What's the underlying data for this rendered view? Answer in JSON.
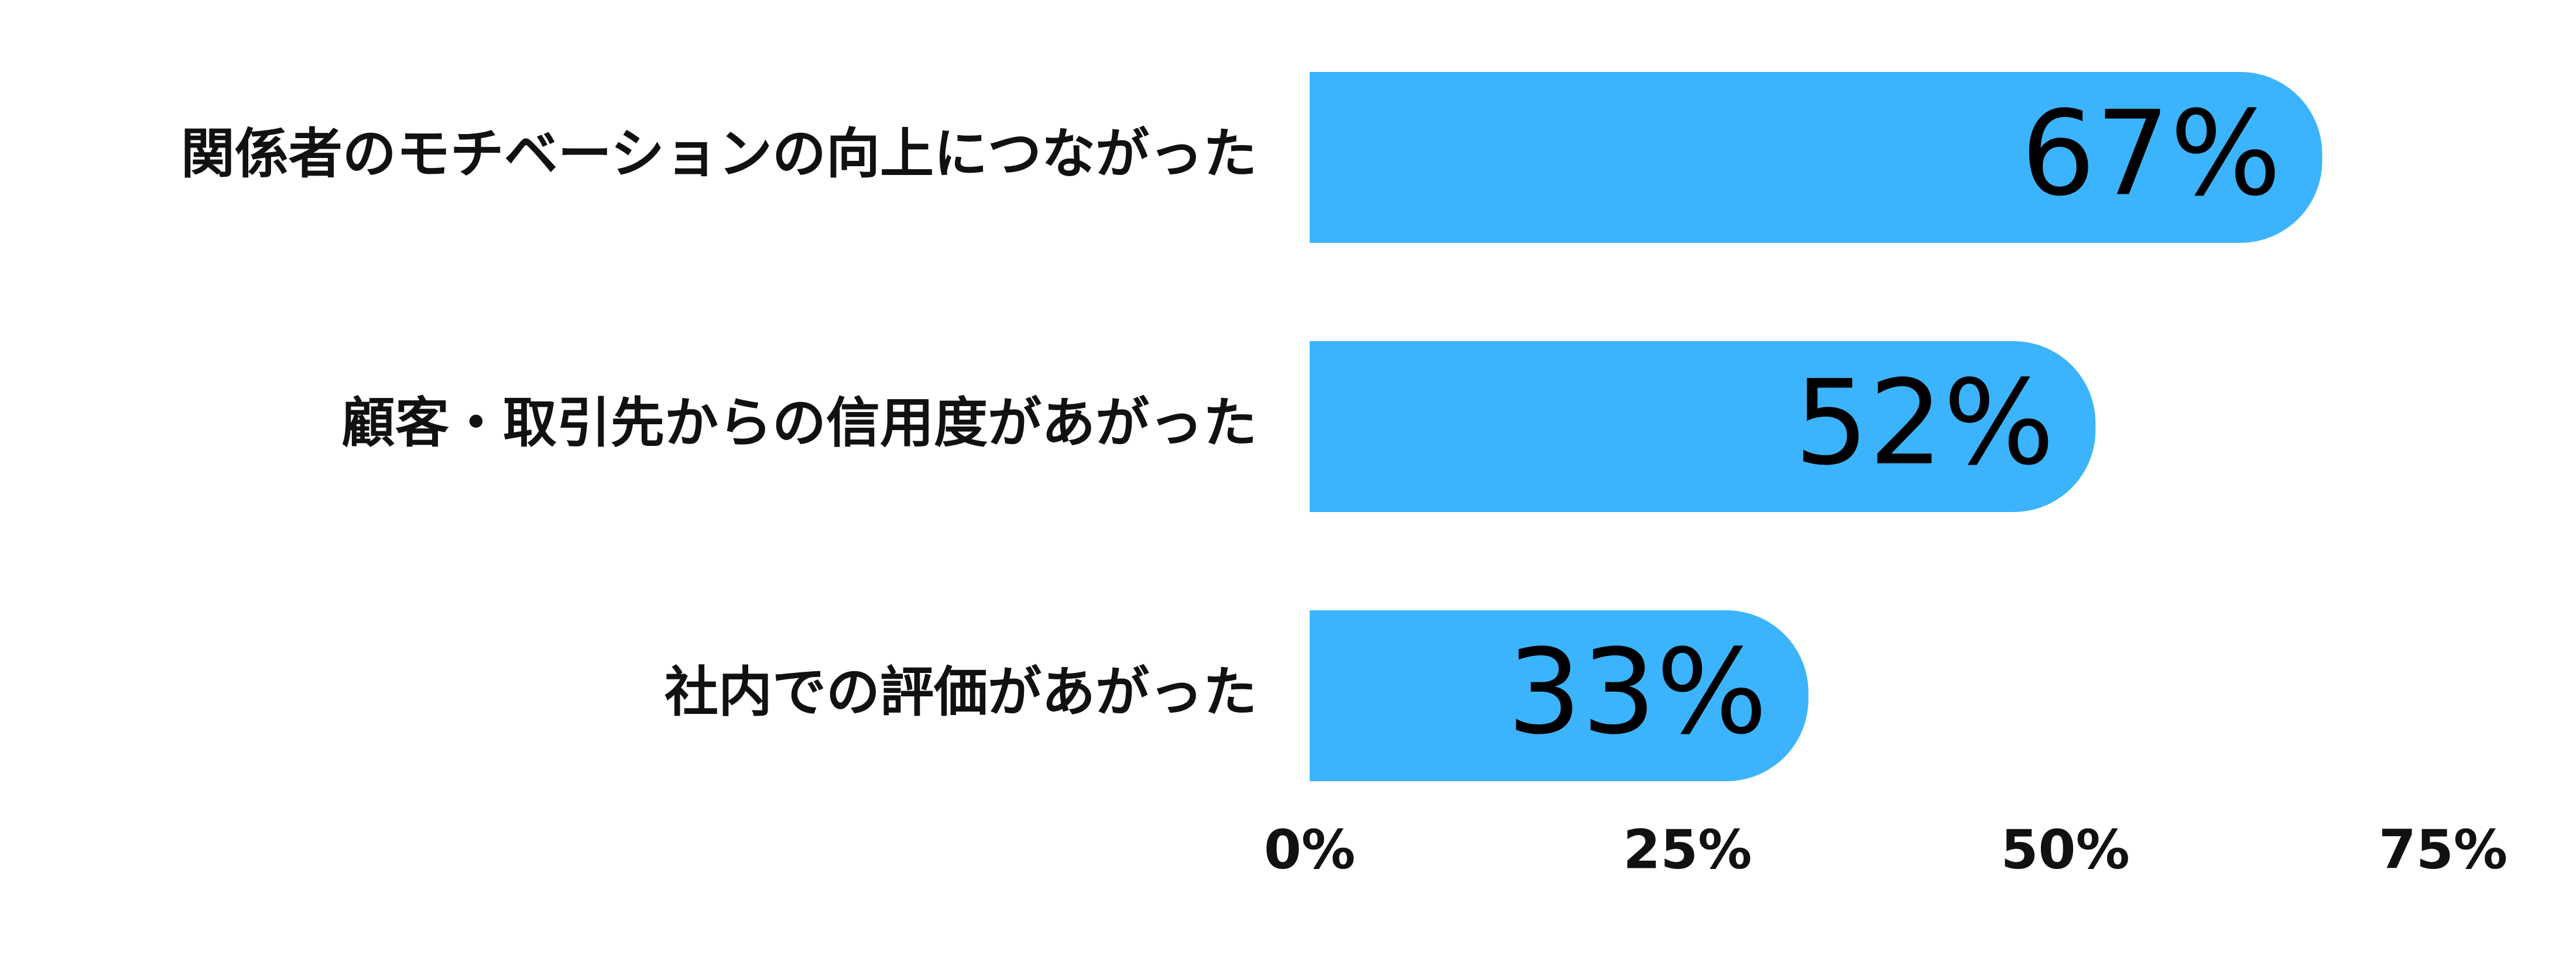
{
  "chart_data": {
    "type": "bar",
    "orientation": "horizontal",
    "categories": [
      "関係者のモチベーションの向上につながった",
      "顧客・取引先からの信用度があがった",
      "社内での評価があがった"
    ],
    "values": [
      67,
      52,
      33
    ],
    "value_labels": [
      "67%",
      "52%",
      "33%"
    ],
    "color": "#3bb4fd",
    "xlim": [
      0,
      75
    ],
    "xticks": [
      {
        "value": 0,
        "label": "0%"
      },
      {
        "value": 25,
        "label": "25%"
      },
      {
        "value": 50,
        "label": "50%"
      },
      {
        "value": 75,
        "label": "75%"
      }
    ],
    "grid": false
  }
}
